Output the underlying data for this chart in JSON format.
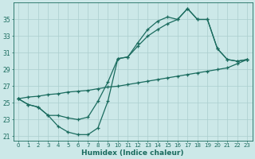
{
  "x": [
    0,
    1,
    2,
    3,
    4,
    5,
    6,
    7,
    8,
    9,
    10,
    11,
    12,
    13,
    14,
    15,
    16,
    17,
    18,
    19,
    20,
    21,
    22,
    23
  ],
  "line_dip": [
    25.5,
    24.8,
    24.5,
    23.5,
    22.2,
    21.5,
    21.2,
    21.2,
    22.0,
    25.2,
    30.3,
    30.5,
    32.2,
    33.8,
    34.8,
    35.3,
    35.0,
    36.3,
    35.0,
    35.0,
    31.5,
    30.2,
    30.0,
    30.2
  ],
  "line_upper": [
    25.5,
    24.8,
    24.5,
    23.5,
    23.5,
    23.2,
    23.0,
    23.3,
    25.2,
    27.5,
    30.3,
    30.5,
    31.8,
    33.0,
    33.8,
    34.5,
    35.0,
    36.3,
    35.0,
    35.0,
    31.5,
    30.2,
    30.0,
    30.2
  ],
  "line_trend": [
    25.5,
    25.7,
    25.8,
    26.0,
    26.1,
    26.3,
    26.4,
    26.5,
    26.7,
    26.9,
    27.0,
    27.2,
    27.4,
    27.6,
    27.8,
    28.0,
    28.2,
    28.4,
    28.6,
    28.8,
    29.0,
    29.2,
    29.7,
    30.2
  ],
  "bg_color": "#cce8e8",
  "line_color": "#1a6b5e",
  "grid_color": "#aacece",
  "xlabel": "Humidex (Indice chaleur)",
  "xlim": [
    -0.5,
    23.5
  ],
  "ylim": [
    20.5,
    37.0
  ],
  "yticks": [
    21,
    23,
    25,
    27,
    29,
    31,
    33,
    35
  ],
  "xticks": [
    0,
    1,
    2,
    3,
    4,
    5,
    6,
    7,
    8,
    9,
    10,
    11,
    12,
    13,
    14,
    15,
    16,
    17,
    18,
    19,
    20,
    21,
    22,
    23
  ]
}
